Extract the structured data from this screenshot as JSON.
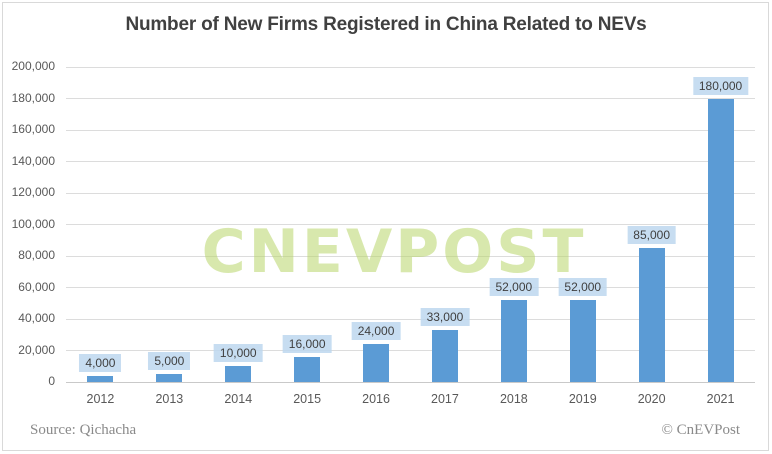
{
  "title": "Number of New Firms Registered in China Related to NEVs",
  "watermark": "CNEVPOST",
  "footer": {
    "source": "Source: Qichacha",
    "copyright": "© CnEVPost"
  },
  "colors": {
    "bar": "#5b9bd5",
    "label_bg": "rgba(189,215,238,0.85)",
    "label_text": "#404040",
    "watermark": "rgba(184,213,105,0.55)",
    "grid": "#dcdcdc",
    "axis": "#c9c9c9",
    "title_text": "#404040",
    "tick_text": "#595959"
  },
  "chart_data": {
    "type": "bar",
    "title": "Number of New Firms Registered in China Related to NEVs",
    "categories": [
      "2012",
      "2013",
      "2014",
      "2015",
      "2016",
      "2017",
      "2018",
      "2019",
      "2020",
      "2021"
    ],
    "values": [
      4000,
      5000,
      10000,
      16000,
      24000,
      33000,
      52000,
      52000,
      85000,
      180000
    ],
    "data_labels": [
      "4,000",
      "5,000",
      "10,000",
      "16,000",
      "24,000",
      "33,000",
      "52,000",
      "52,000",
      "85,000",
      "180,000"
    ],
    "xlabel": "",
    "ylabel": "",
    "ylim": [
      0,
      200000
    ],
    "ytick_step": 20000,
    "ytick_labels": [
      "0",
      "20,000",
      "40,000",
      "60,000",
      "80,000",
      "100,000",
      "120,000",
      "140,000",
      "160,000",
      "180,000",
      "200,000"
    ],
    "grid": true,
    "legend": false,
    "data_label_style": "light-blue-box-above-bar",
    "source": "Qichacha"
  }
}
